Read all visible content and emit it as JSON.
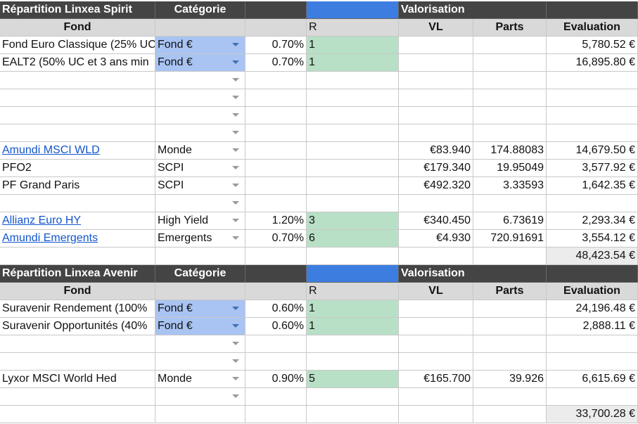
{
  "section1": {
    "title": "Répartition Linxea Spirit",
    "category_header": "Catégorie",
    "valuation_header": "Valorisation",
    "columns": {
      "fund": "Fond",
      "r": "R",
      "vl": "VL",
      "parts": "Parts",
      "evaluation": "Evaluation"
    },
    "rows": [
      {
        "fund": "Fond Euro Classique (25% UC",
        "link": false,
        "category": "Fond €",
        "highlight": true,
        "rate": "0.70%",
        "r": "1",
        "vl": "",
        "parts": "",
        "evaluation": "5,780.52 €"
      },
      {
        "fund": "EALT2 (50% UC et 3 ans min",
        "link": false,
        "category": "Fond €",
        "highlight": true,
        "rate": "0.70%",
        "r": "1",
        "vl": "",
        "parts": "",
        "evaluation": "16,895.80 €"
      },
      {
        "fund": "",
        "link": false,
        "category": "",
        "highlight": false,
        "rate": "",
        "r": "",
        "vl": "",
        "parts": "",
        "evaluation": ""
      },
      {
        "fund": "",
        "link": false,
        "category": "",
        "highlight": false,
        "rate": "",
        "r": "",
        "vl": "",
        "parts": "",
        "evaluation": ""
      },
      {
        "fund": "",
        "link": false,
        "category": "",
        "highlight": false,
        "rate": "",
        "r": "",
        "vl": "",
        "parts": "",
        "evaluation": ""
      },
      {
        "fund": "",
        "link": false,
        "category": "",
        "highlight": false,
        "rate": "",
        "r": "",
        "vl": "",
        "parts": "",
        "evaluation": ""
      },
      {
        "fund": "Amundi MSCI WLD",
        "link": true,
        "category": "Monde",
        "highlight": false,
        "rate": "",
        "r": "",
        "vl": "€83.940",
        "parts": "174.88083",
        "evaluation": "14,679.50 €"
      },
      {
        "fund": "PFO2",
        "link": false,
        "category": "SCPI",
        "highlight": false,
        "rate": "",
        "r": "",
        "vl": "€179.340",
        "parts": "19.95049",
        "evaluation": "3,577.92 €"
      },
      {
        "fund": "PF Grand Paris",
        "link": false,
        "category": "SCPI",
        "highlight": false,
        "rate": "",
        "r": "",
        "vl": "€492.320",
        "parts": "3.33593",
        "evaluation": "1,642.35 €"
      },
      {
        "fund": "",
        "link": false,
        "category": "",
        "highlight": false,
        "rate": "",
        "r": "",
        "vl": "",
        "parts": "",
        "evaluation": ""
      },
      {
        "fund": "Allianz Euro HY",
        "link": true,
        "category": "High Yield",
        "highlight": false,
        "rate": "1.20%",
        "r": "3",
        "vl": "€340.450",
        "parts": "6.73619",
        "evaluation": "2,293.34 €"
      },
      {
        "fund": "Amundi Emergents",
        "link": true,
        "category": "Emergents",
        "highlight": false,
        "rate": "0.70%",
        "r": "6",
        "vl": "€4.930",
        "parts": "720.91691",
        "evaluation": "3,554.12 €"
      }
    ],
    "total": "48,423.54 €"
  },
  "section2": {
    "title": "Répartition Linxea Avenir",
    "category_header": "Catégorie",
    "valuation_header": "Valorisation",
    "columns": {
      "fund": "Fond",
      "r": "R",
      "vl": "VL",
      "parts": "Parts",
      "evaluation": "Evaluation"
    },
    "rows": [
      {
        "fund": "Suravenir Rendement (100%",
        "link": false,
        "category": "Fond €",
        "highlight": true,
        "rate": "0.60%",
        "r": "1",
        "vl": "",
        "parts": "",
        "evaluation": "24,196.48 €"
      },
      {
        "fund": "Suravenir Opportunités (40%",
        "link": false,
        "category": "Fond €",
        "highlight": true,
        "rate": "0.60%",
        "r": "1",
        "vl": "",
        "parts": "",
        "evaluation": "2,888.11 €"
      },
      {
        "fund": "",
        "link": false,
        "category": "",
        "highlight": false,
        "rate": "",
        "r": "",
        "vl": "",
        "parts": "",
        "evaluation": ""
      },
      {
        "fund": "",
        "link": false,
        "category": "",
        "highlight": false,
        "rate": "",
        "r": "",
        "vl": "",
        "parts": "",
        "evaluation": ""
      },
      {
        "fund": "Lyxor MSCI World Hed",
        "link": false,
        "category": "Monde",
        "highlight": false,
        "rate": "0.90%",
        "r": "5",
        "vl": "€165.700",
        "parts": "39.926",
        "evaluation": "6,615.69 €"
      },
      {
        "fund": "",
        "link": false,
        "category": "",
        "highlight": false,
        "rate": "",
        "r": "",
        "vl": "",
        "parts": "",
        "evaluation": ""
      }
    ],
    "total": "33,700.28 €"
  },
  "colors": {
    "section_header": "#444444",
    "blue_header": "#3d7de0",
    "category_highlight": "#a9c4f2",
    "r_highlight": "#b8e0c6",
    "link": "#1155cc"
  }
}
